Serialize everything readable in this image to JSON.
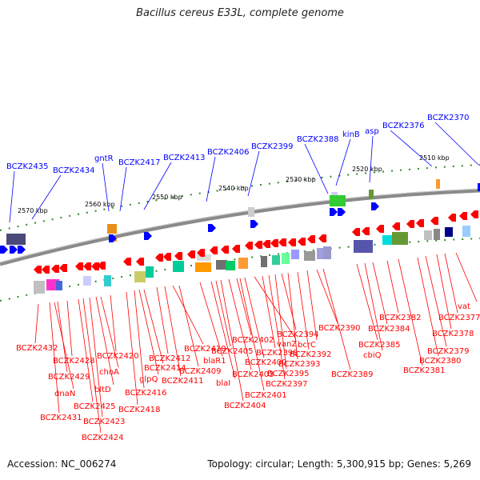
{
  "title": "Bacillus cereus E33L, complete genome",
  "footer": {
    "accession": "Accession: NC_006274",
    "summary": "Topology: circular; Length: 5,300,915 bp; Genes: 5,269"
  },
  "colors": {
    "forward_gene": "#0000ff",
    "reverse_gene": "#ff0000",
    "backbone": "#8a8a8a",
    "tick": "#2a8a2a",
    "kbp_label": "#000000"
  },
  "kbp_ticks": [
    "2510 kbp",
    "2520 kbp",
    "2530 kbp",
    "2540 kbp",
    "2550 kbp",
    "2560 kbp",
    "2570 kbp"
  ],
  "forward_labels": [
    "BCZK2435",
    "BCZK2434",
    "gntR",
    "BCZK2417",
    "BCZK2413",
    "BCZK2406",
    "BCZK2399",
    "BCZK2388",
    "kinB",
    "asp",
    "BCZK2376",
    "BCZK2370"
  ],
  "reverse_labels": [
    "BCZK2432",
    "BCZK2431",
    "dnaN",
    "BCZK2429",
    "BCZK2428",
    "BCZK2425",
    "BCZK2424",
    "BCZK2423",
    "bltD",
    "choA",
    "BCZK2420",
    "BCZK2418",
    "BCZK2416",
    "glpQ",
    "BCZK2414",
    "BCZK2412",
    "BCZK2411",
    "BCZK2410",
    "BCZK2409",
    "blaR1",
    "blaI",
    "BCZK2405",
    "BCZK2404",
    "BCZK2403",
    "BCZK2402",
    "BCZK2401",
    "BCZK2400",
    "vanZ",
    "BCZK2398",
    "BCZK2397",
    "BCZK2395",
    "BCZK2394",
    "BCZK2393",
    "BCZK2392",
    "bcrC",
    "BCZK2390",
    "BCZK2389",
    "BCZK2385",
    "cbiQ",
    "BCZK2384",
    "BCZK2382",
    "BCZK2381",
    "BCZK2380",
    "BCZK2379",
    "BCZK2378",
    "BCZK2377",
    "vat"
  ]
}
